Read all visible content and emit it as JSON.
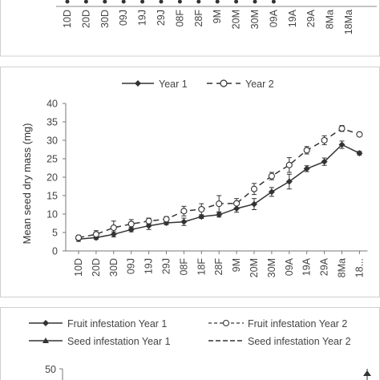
{
  "chart_data": [
    {
      "type": "line",
      "title": "",
      "xlabel": "",
      "ylabel": "",
      "categories": [
        "10D",
        "20D",
        "30D",
        "09J",
        "19J",
        "29J",
        "08F",
        "28F",
        "9M",
        "20M",
        "30M",
        "09A",
        "19A",
        "29A",
        "8Ma",
        "18Ma"
      ],
      "series": [],
      "note": "cropped panel: only lower x-axis tick labels and series points visible"
    },
    {
      "type": "line",
      "xlabel": "",
      "ylabel": "Mean seed dry mass (mg)",
      "ylim": [
        0,
        40
      ],
      "yticks": [
        "0",
        "5",
        "10",
        "15",
        "20",
        "25",
        "30",
        "35",
        "40"
      ],
      "categories": [
        "10D",
        "20D",
        "30D",
        "09J",
        "19J",
        "29J",
        "08F",
        "18F",
        "28F",
        "9M",
        "20M",
        "30M",
        "09A",
        "19A",
        "29A",
        "8Ma",
        "18..."
      ],
      "grid": false,
      "legend_position": "top-center",
      "series": [
        {
          "name": "Year 1",
          "style": "solid",
          "marker": "diamond",
          "values": [
            3.2,
            3.6,
            4.5,
            5.8,
            6.8,
            7.6,
            7.9,
            9.3,
            9.8,
            11.5,
            12.7,
            16.0,
            18.8,
            22.3,
            24.2,
            28.8,
            26.5
          ],
          "errors": [
            0.6,
            0.5,
            0.7,
            0.6,
            1.0,
            0.5,
            1.0,
            0.5,
            0.6,
            1.0,
            1.5,
            1.2,
            2.0,
            0.8,
            1.0,
            1.0,
            0.5
          ]
        },
        {
          "name": "Year 2",
          "style": "dashed",
          "marker": "circle",
          "values": [
            3.6,
            4.5,
            6.3,
            7.3,
            8.1,
            8.6,
            10.8,
            11.3,
            12.8,
            12.9,
            16.8,
            20.3,
            23.3,
            27.3,
            30.0,
            33.2,
            31.6
          ],
          "errors": [
            0.6,
            1.0,
            1.8,
            1.2,
            0.8,
            0.7,
            1.3,
            1.5,
            2.2,
            1.3,
            1.5,
            1.0,
            2.0,
            1.0,
            1.2,
            0.8,
            0.5
          ]
        }
      ]
    },
    {
      "type": "line",
      "ylim": [
        0,
        50
      ],
      "yticks": [
        "50"
      ],
      "series": [
        {
          "name": "Fruit infestation Year 1",
          "style": "solid",
          "marker": "diamond"
        },
        {
          "name": "Fruit infestation Year 2",
          "style": "dashed",
          "marker": "circle"
        },
        {
          "name": "Seed infestation Year 1",
          "style": "solid",
          "marker": "triangle"
        },
        {
          "name": "Seed infestation Year 2",
          "style": "dashed",
          "marker": "none"
        }
      ]
    }
  ]
}
